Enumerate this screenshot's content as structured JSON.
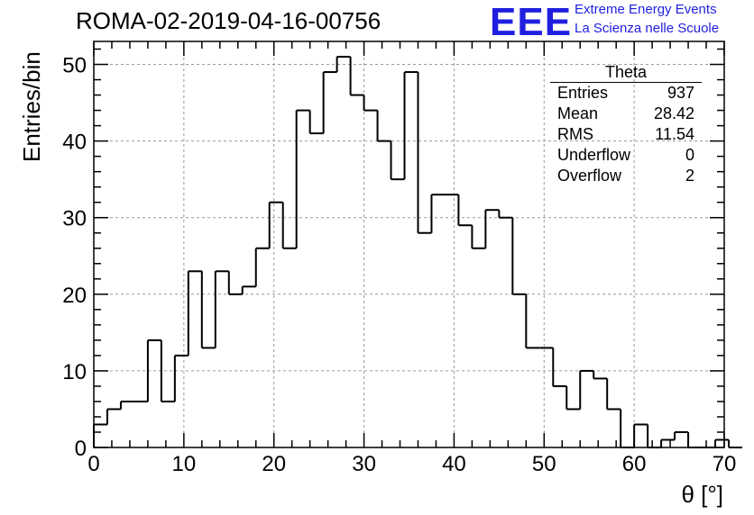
{
  "title": "ROMA-02-2019-04-16-00756",
  "logo": {
    "mark": "EEE",
    "line1": "Extreme Energy Events",
    "line2": "La Scienza nelle Scuole"
  },
  "stats_box": {
    "title": "Theta",
    "rows": [
      {
        "label": "Entries",
        "value": "937"
      },
      {
        "label": "Mean",
        "value": "28.42"
      },
      {
        "label": "RMS",
        "value": "11.54"
      },
      {
        "label": "Underflow",
        "value": "0"
      },
      {
        "label": "Overflow",
        "value": "2"
      }
    ]
  },
  "chart_data": {
    "type": "bar",
    "style": "step-histogram",
    "title": "ROMA-02-2019-04-16-00756",
    "xlabel": "θ [°]",
    "ylabel": "Entries/bin",
    "xlim": [
      0,
      70
    ],
    "ylim": [
      0,
      53
    ],
    "bin_width": 1.5,
    "x_ticks": [
      0,
      10,
      20,
      30,
      40,
      50,
      60,
      70
    ],
    "y_ticks": [
      0,
      10,
      20,
      30,
      40,
      50
    ],
    "grid": true,
    "line_color": "#000000",
    "grid_color": "#9a9a9a",
    "values": [
      3,
      5,
      6,
      6,
      14,
      6,
      12,
      23,
      13,
      23,
      20,
      21,
      26,
      32,
      26,
      44,
      41,
      49,
      51,
      46,
      44,
      40,
      35,
      49,
      28,
      33,
      33,
      29,
      26,
      31,
      30,
      20,
      13,
      13,
      8,
      5,
      10,
      9,
      5,
      0,
      3,
      0,
      1,
      2,
      0,
      0,
      1,
      0
    ]
  }
}
